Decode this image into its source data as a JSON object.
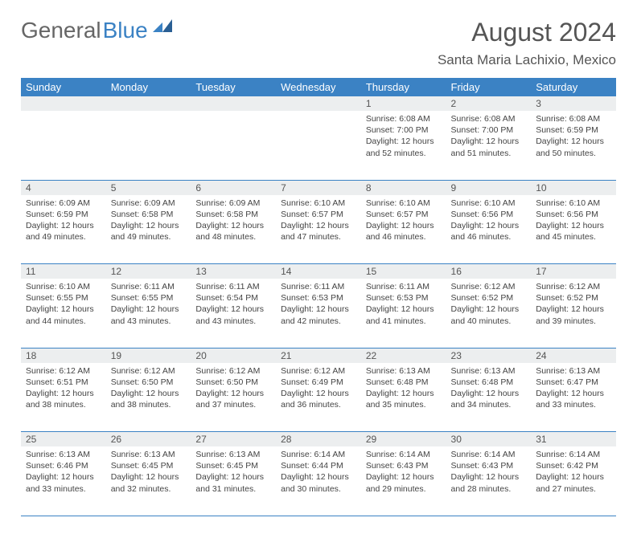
{
  "logo": {
    "part1": "General",
    "part2": "Blue"
  },
  "title": {
    "month": "August 2024",
    "location": "Santa Maria Lachixio, Mexico"
  },
  "colors": {
    "header_bg": "#3b82c4",
    "daynum_bg": "#eceeef",
    "text": "#444444"
  },
  "dayHeaders": [
    "Sunday",
    "Monday",
    "Tuesday",
    "Wednesday",
    "Thursday",
    "Friday",
    "Saturday"
  ],
  "weeks": [
    {
      "nums": [
        "",
        "",
        "",
        "",
        "1",
        "2",
        "3"
      ],
      "cells": [
        null,
        null,
        null,
        null,
        {
          "sunrise": "Sunrise: 6:08 AM",
          "sunset": "Sunset: 7:00 PM",
          "daylight": "Daylight: 12 hours and 52 minutes."
        },
        {
          "sunrise": "Sunrise: 6:08 AM",
          "sunset": "Sunset: 7:00 PM",
          "daylight": "Daylight: 12 hours and 51 minutes."
        },
        {
          "sunrise": "Sunrise: 6:08 AM",
          "sunset": "Sunset: 6:59 PM",
          "daylight": "Daylight: 12 hours and 50 minutes."
        }
      ]
    },
    {
      "nums": [
        "4",
        "5",
        "6",
        "7",
        "8",
        "9",
        "10"
      ],
      "cells": [
        {
          "sunrise": "Sunrise: 6:09 AM",
          "sunset": "Sunset: 6:59 PM",
          "daylight": "Daylight: 12 hours and 49 minutes."
        },
        {
          "sunrise": "Sunrise: 6:09 AM",
          "sunset": "Sunset: 6:58 PM",
          "daylight": "Daylight: 12 hours and 49 minutes."
        },
        {
          "sunrise": "Sunrise: 6:09 AM",
          "sunset": "Sunset: 6:58 PM",
          "daylight": "Daylight: 12 hours and 48 minutes."
        },
        {
          "sunrise": "Sunrise: 6:10 AM",
          "sunset": "Sunset: 6:57 PM",
          "daylight": "Daylight: 12 hours and 47 minutes."
        },
        {
          "sunrise": "Sunrise: 6:10 AM",
          "sunset": "Sunset: 6:57 PM",
          "daylight": "Daylight: 12 hours and 46 minutes."
        },
        {
          "sunrise": "Sunrise: 6:10 AM",
          "sunset": "Sunset: 6:56 PM",
          "daylight": "Daylight: 12 hours and 46 minutes."
        },
        {
          "sunrise": "Sunrise: 6:10 AM",
          "sunset": "Sunset: 6:56 PM",
          "daylight": "Daylight: 12 hours and 45 minutes."
        }
      ]
    },
    {
      "nums": [
        "11",
        "12",
        "13",
        "14",
        "15",
        "16",
        "17"
      ],
      "cells": [
        {
          "sunrise": "Sunrise: 6:10 AM",
          "sunset": "Sunset: 6:55 PM",
          "daylight": "Daylight: 12 hours and 44 minutes."
        },
        {
          "sunrise": "Sunrise: 6:11 AM",
          "sunset": "Sunset: 6:55 PM",
          "daylight": "Daylight: 12 hours and 43 minutes."
        },
        {
          "sunrise": "Sunrise: 6:11 AM",
          "sunset": "Sunset: 6:54 PM",
          "daylight": "Daylight: 12 hours and 43 minutes."
        },
        {
          "sunrise": "Sunrise: 6:11 AM",
          "sunset": "Sunset: 6:53 PM",
          "daylight": "Daylight: 12 hours and 42 minutes."
        },
        {
          "sunrise": "Sunrise: 6:11 AM",
          "sunset": "Sunset: 6:53 PM",
          "daylight": "Daylight: 12 hours and 41 minutes."
        },
        {
          "sunrise": "Sunrise: 6:12 AM",
          "sunset": "Sunset: 6:52 PM",
          "daylight": "Daylight: 12 hours and 40 minutes."
        },
        {
          "sunrise": "Sunrise: 6:12 AM",
          "sunset": "Sunset: 6:52 PM",
          "daylight": "Daylight: 12 hours and 39 minutes."
        }
      ]
    },
    {
      "nums": [
        "18",
        "19",
        "20",
        "21",
        "22",
        "23",
        "24"
      ],
      "cells": [
        {
          "sunrise": "Sunrise: 6:12 AM",
          "sunset": "Sunset: 6:51 PM",
          "daylight": "Daylight: 12 hours and 38 minutes."
        },
        {
          "sunrise": "Sunrise: 6:12 AM",
          "sunset": "Sunset: 6:50 PM",
          "daylight": "Daylight: 12 hours and 38 minutes."
        },
        {
          "sunrise": "Sunrise: 6:12 AM",
          "sunset": "Sunset: 6:50 PM",
          "daylight": "Daylight: 12 hours and 37 minutes."
        },
        {
          "sunrise": "Sunrise: 6:12 AM",
          "sunset": "Sunset: 6:49 PM",
          "daylight": "Daylight: 12 hours and 36 minutes."
        },
        {
          "sunrise": "Sunrise: 6:13 AM",
          "sunset": "Sunset: 6:48 PM",
          "daylight": "Daylight: 12 hours and 35 minutes."
        },
        {
          "sunrise": "Sunrise: 6:13 AM",
          "sunset": "Sunset: 6:48 PM",
          "daylight": "Daylight: 12 hours and 34 minutes."
        },
        {
          "sunrise": "Sunrise: 6:13 AM",
          "sunset": "Sunset: 6:47 PM",
          "daylight": "Daylight: 12 hours and 33 minutes."
        }
      ]
    },
    {
      "nums": [
        "25",
        "26",
        "27",
        "28",
        "29",
        "30",
        "31"
      ],
      "cells": [
        {
          "sunrise": "Sunrise: 6:13 AM",
          "sunset": "Sunset: 6:46 PM",
          "daylight": "Daylight: 12 hours and 33 minutes."
        },
        {
          "sunrise": "Sunrise: 6:13 AM",
          "sunset": "Sunset: 6:45 PM",
          "daylight": "Daylight: 12 hours and 32 minutes."
        },
        {
          "sunrise": "Sunrise: 6:13 AM",
          "sunset": "Sunset: 6:45 PM",
          "daylight": "Daylight: 12 hours and 31 minutes."
        },
        {
          "sunrise": "Sunrise: 6:14 AM",
          "sunset": "Sunset: 6:44 PM",
          "daylight": "Daylight: 12 hours and 30 minutes."
        },
        {
          "sunrise": "Sunrise: 6:14 AM",
          "sunset": "Sunset: 6:43 PM",
          "daylight": "Daylight: 12 hours and 29 minutes."
        },
        {
          "sunrise": "Sunrise: 6:14 AM",
          "sunset": "Sunset: 6:43 PM",
          "daylight": "Daylight: 12 hours and 28 minutes."
        },
        {
          "sunrise": "Sunrise: 6:14 AM",
          "sunset": "Sunset: 6:42 PM",
          "daylight": "Daylight: 12 hours and 27 minutes."
        }
      ]
    }
  ]
}
